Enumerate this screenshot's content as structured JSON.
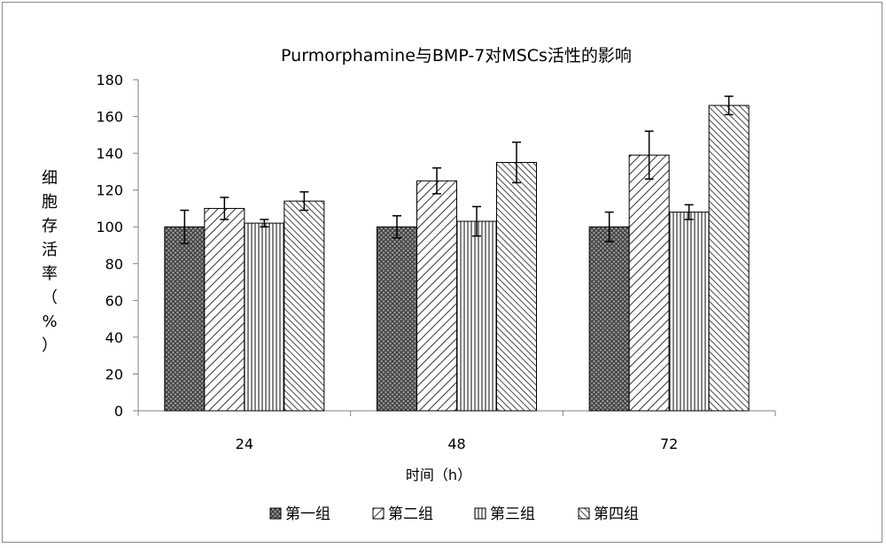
{
  "chart_data": {
    "type": "bar",
    "title": "Purmorphamine与BMP-7对MSCs活性的影响",
    "xlabel": "时间（h）",
    "ylabel": "细胞存活率（%）",
    "categories": [
      "24",
      "48",
      "72"
    ],
    "ylim": [
      0,
      180
    ],
    "yticks": [
      "0",
      "20",
      "40",
      "60",
      "80",
      "100",
      "120",
      "140",
      "160",
      "180"
    ],
    "grid": false,
    "legend_position": "bottom",
    "series": [
      {
        "name": "第一组",
        "values": [
          100,
          100,
          100
        ],
        "errors": [
          9,
          6,
          8
        ],
        "pattern": "crosshatch"
      },
      {
        "name": "第二组",
        "values": [
          110,
          125,
          139
        ],
        "errors": [
          6,
          7,
          13
        ],
        "pattern": "diagonal-forward"
      },
      {
        "name": "第三组",
        "values": [
          102,
          103,
          108
        ],
        "errors": [
          2,
          8,
          4
        ],
        "pattern": "vertical"
      },
      {
        "name": "第四组",
        "values": [
          114,
          135,
          166
        ],
        "errors": [
          5,
          11,
          5
        ],
        "pattern": "diagonal-backward"
      }
    ]
  }
}
